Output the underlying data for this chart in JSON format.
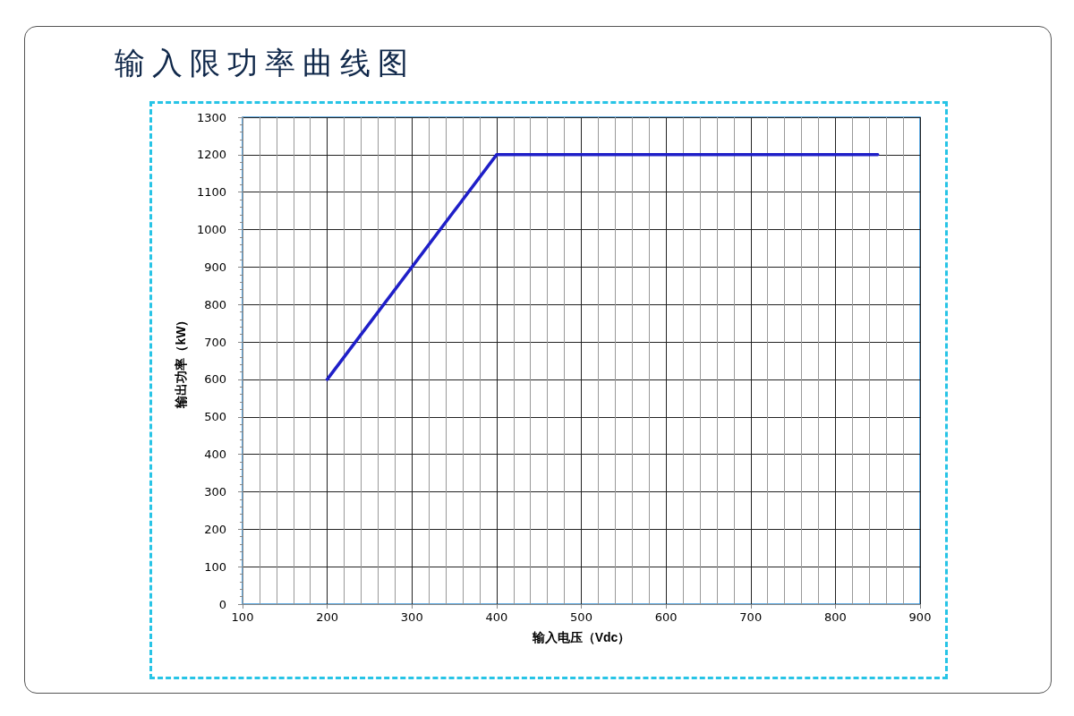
{
  "chart_data": {
    "type": "line",
    "title": "输入限功率曲线图",
    "xlabel": "输入电压（Vdc）",
    "ylabel": "输出功率（kW）",
    "x": [
      200,
      400,
      850
    ],
    "series": [
      {
        "color": "#1f1fc8",
        "values": [
          600,
          1200,
          1200
        ]
      }
    ],
    "xlim": [
      100,
      900
    ],
    "xticks": [
      100,
      200,
      300,
      400,
      500,
      600,
      700,
      800,
      900
    ],
    "ylim": [
      0,
      1300
    ],
    "yticks": [
      0,
      100,
      200,
      300,
      400,
      500,
      600,
      700,
      800,
      900,
      1000,
      1100,
      1200,
      1300
    ],
    "grid": true,
    "marker": "none",
    "line_style": "solid"
  }
}
